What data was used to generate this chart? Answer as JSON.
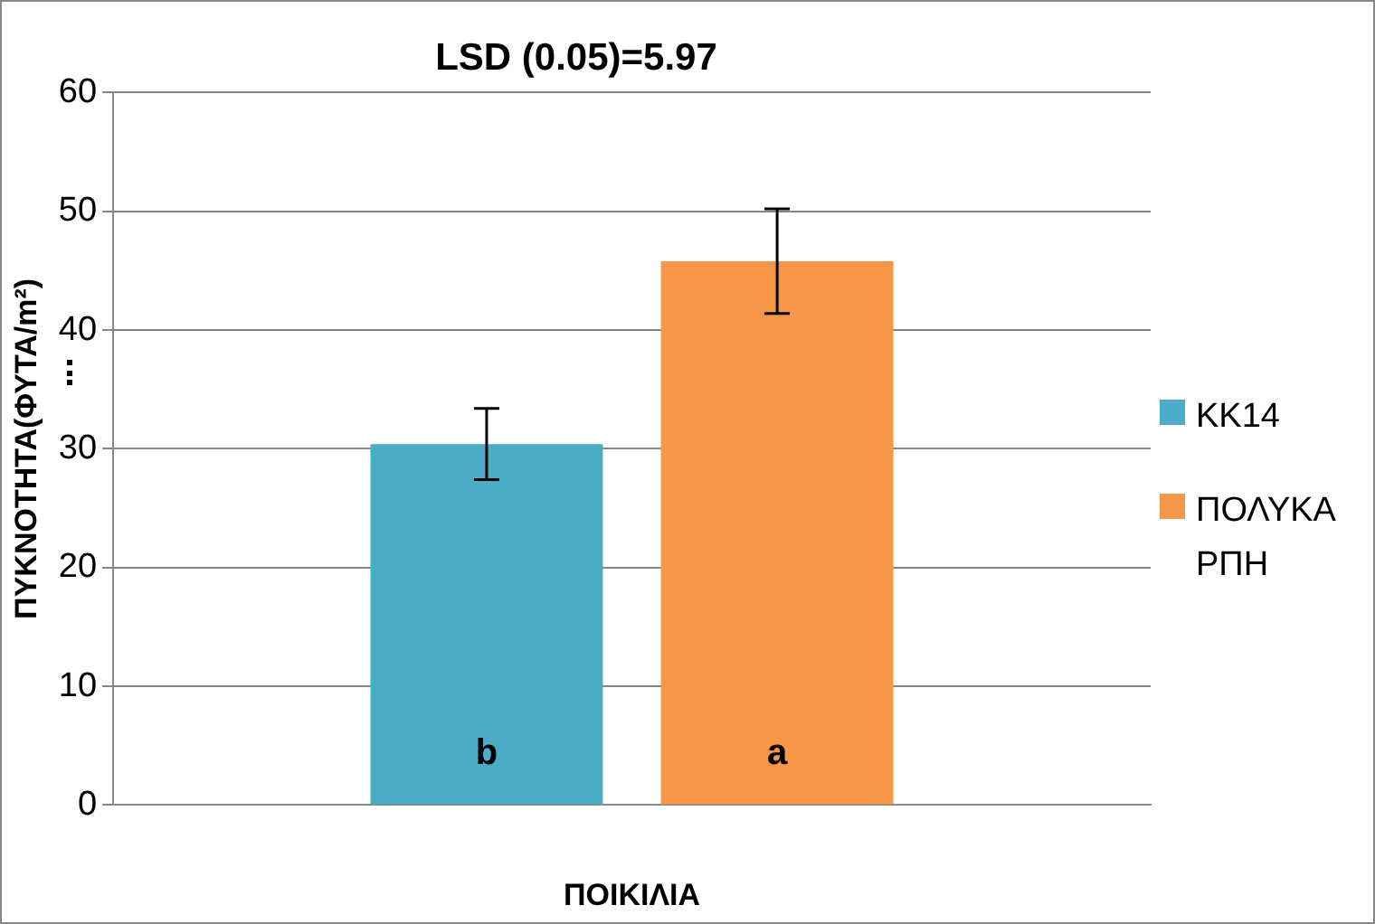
{
  "chart_data": {
    "type": "bar",
    "title": "LSD (0.05)=5.97",
    "xlabel": "ΠΟΙΚΙΛΙΑ",
    "ylabel": "ΠΥΚΝΟΤΗΤΑ(ΦΥΤΑ/m²)",
    "categories": [
      null
    ],
    "series": [
      {
        "name": "KK14",
        "color": "#4bacc6",
        "values": [
          30.4
        ],
        "errors": [
          3.0
        ],
        "value_labels": [
          "b"
        ]
      },
      {
        "name": "ΠΟΛΥΚΑΡΠΗ",
        "color": "#f79646",
        "values": [
          45.8
        ],
        "errors": [
          4.4
        ],
        "value_labels": [
          "a"
        ]
      }
    ],
    "ylim": [
      0,
      60
    ],
    "yticks": [
      0,
      10,
      20,
      30,
      40,
      50,
      60
    ],
    "grid": "y",
    "legend": "right"
  }
}
